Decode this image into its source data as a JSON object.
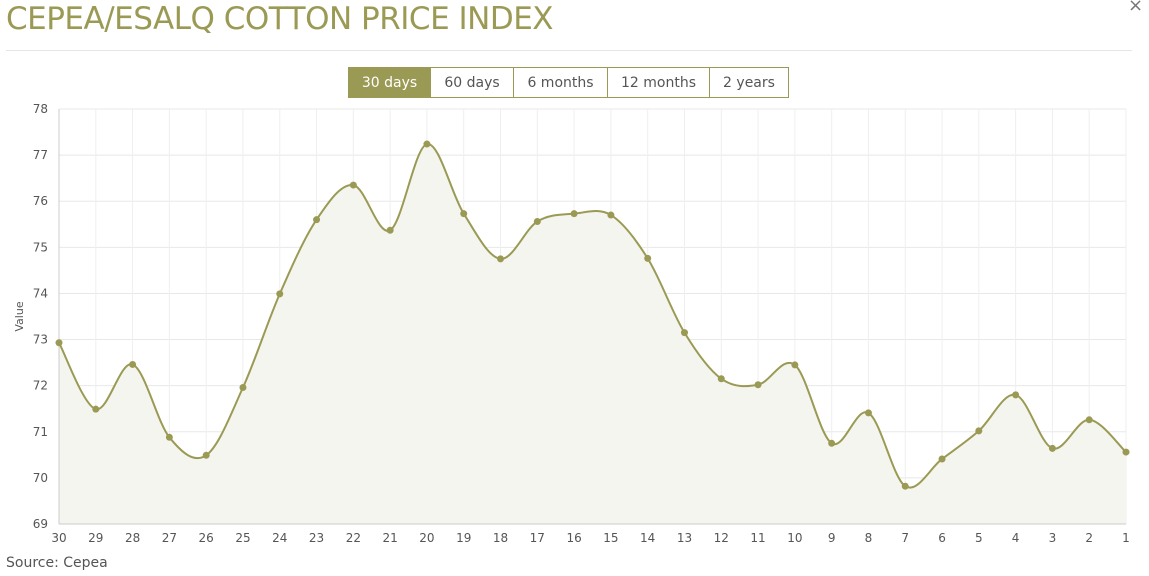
{
  "header": {
    "title": "CEPEA/ESALQ COTTON PRICE INDEX",
    "close_symbol": "×"
  },
  "tabs": [
    {
      "label": "30 days",
      "active": true
    },
    {
      "label": "60 days",
      "active": false
    },
    {
      "label": "6 months",
      "active": false
    },
    {
      "label": "12 months",
      "active": false
    },
    {
      "label": "2 years",
      "active": false
    }
  ],
  "footer": {
    "source": "Source: Cepea"
  },
  "colors": {
    "accent": "#9b9a55",
    "fill": "#f5f5f0",
    "grid": "#e8e8e8"
  },
  "chart_data": {
    "type": "area",
    "title": "",
    "xlabel": "",
    "ylabel": "Value",
    "categories": [
      "30",
      "29",
      "28",
      "27",
      "26",
      "25",
      "24",
      "23",
      "22",
      "21",
      "20",
      "19",
      "18",
      "17",
      "16",
      "15",
      "14",
      "13",
      "12",
      "11",
      "10",
      "9",
      "8",
      "7",
      "6",
      "5",
      "4",
      "3",
      "2",
      "1"
    ],
    "series": [
      {
        "values": [
          72.93,
          71.49,
          72.46,
          70.88,
          70.49,
          71.96,
          73.99,
          75.6,
          76.35,
          75.37,
          77.24,
          75.73,
          74.75,
          75.56,
          75.73,
          75.7,
          74.76,
          73.15,
          72.15,
          72.02,
          72.45,
          70.75,
          71.41,
          69.82,
          70.41,
          71.02,
          71.8,
          70.64,
          71.26,
          70.56
        ]
      }
    ],
    "ylim": [
      69,
      78
    ],
    "yticks": [
      69,
      70,
      71,
      72,
      73,
      74,
      75,
      76,
      77,
      78
    ],
    "grid": true,
    "legend": "none"
  }
}
